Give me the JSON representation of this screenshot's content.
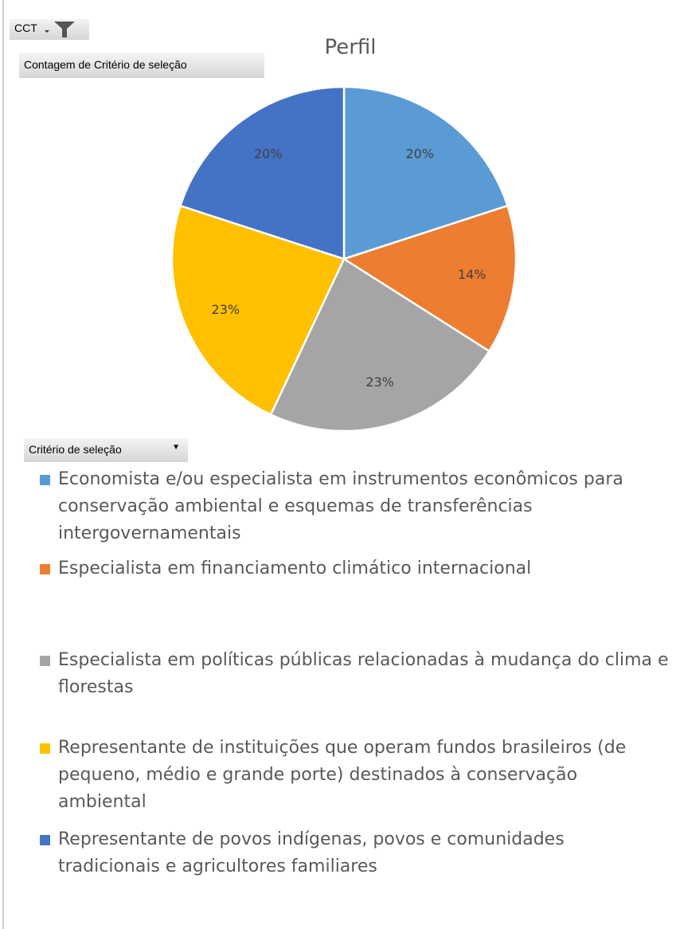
{
  "chart_data": {
    "type": "pie",
    "title": "Perfil",
    "filter_button": "CCT",
    "value_field": "Contagem de Critério de seleção",
    "axis_field": "Critério de seleção",
    "categories": [
      "Economista e/ou especialista em instrumentos econômicos para conservação ambiental e esquemas de transferências intergovernamentais",
      "Especialista em financiamento climático internacional",
      "Especialista em políticas públicas relacionadas à mudança do clima e florestas",
      "Representante de instituições que operam fundos brasileiros (de pequeno, médio e grande porte) destinados à conservação ambiental",
      "Representante de povos indígenas, povos e comunidades tradicionais e agricultores familiares"
    ],
    "values": [
      20,
      14,
      23,
      23,
      20
    ],
    "value_labels": [
      "20%",
      "14%",
      "23%",
      "23%",
      "20%"
    ],
    "colors": [
      "#5b9bd5",
      "#ed7d31",
      "#a5a5a5",
      "#ffc000",
      "#4472c4"
    ]
  }
}
